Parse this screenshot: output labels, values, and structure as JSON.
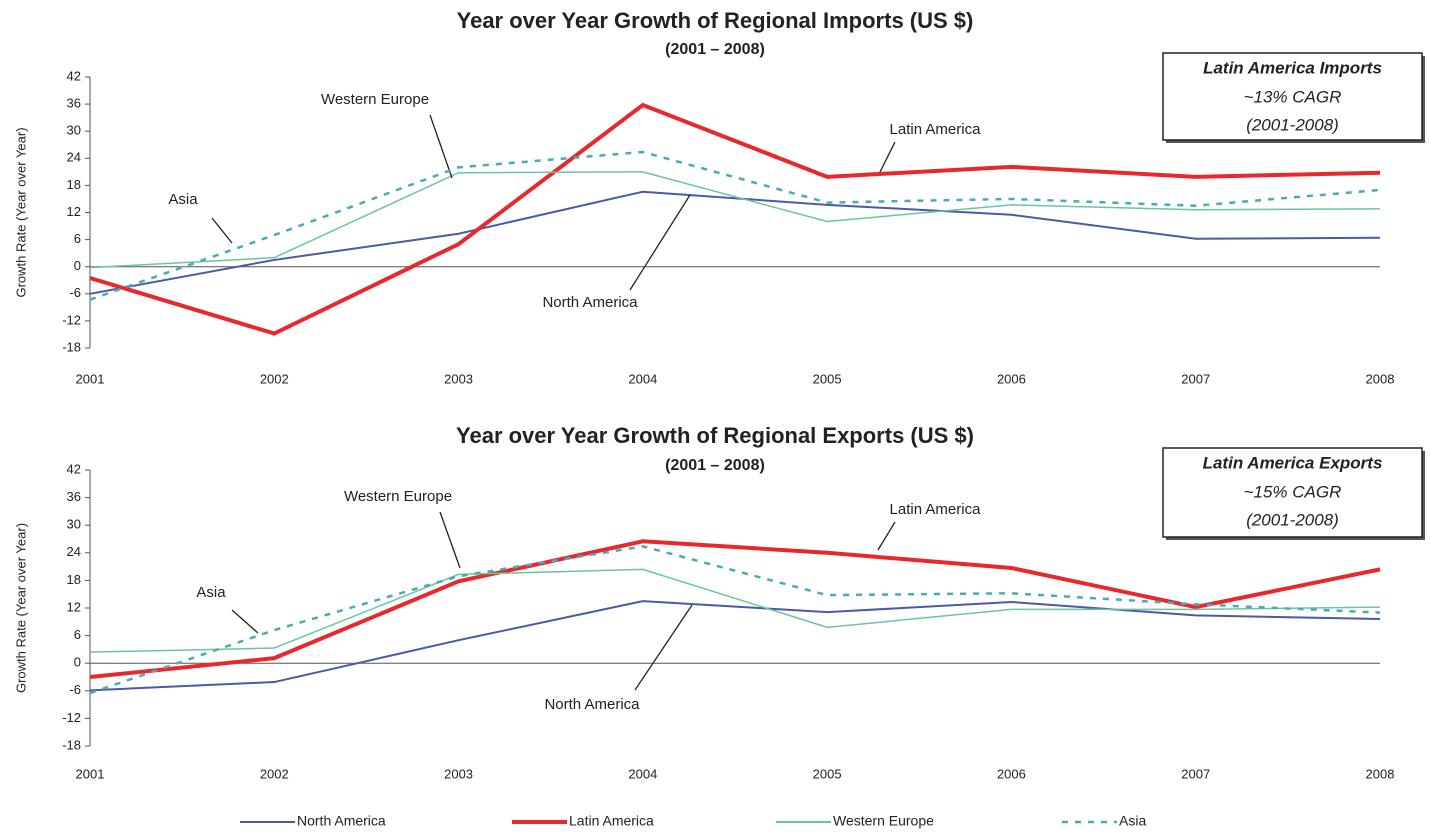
{
  "chart_data": [
    {
      "type": "line",
      "title": "Year over Year Growth of Regional Imports (US $)",
      "subtitle": "(2001 – 2008)",
      "y_label": "Growth Rate (Year over Year)",
      "categories": [
        "2001",
        "2002",
        "2003",
        "2004",
        "2005",
        "2006",
        "2007",
        "2008"
      ],
      "series": [
        {
          "name": "North America",
          "color": "#4a5aa8",
          "values": [
            -6,
            1.5,
            7.3,
            16.6,
            13.7,
            11.5,
            6.2,
            6.4
          ]
        },
        {
          "name": "Latin America",
          "color": "#e8282c",
          "values": [
            -2.5,
            -14.8,
            5,
            35.8,
            19.9,
            22.1,
            19.9,
            20.8
          ]
        },
        {
          "name": "Western Europe",
          "color": "#6cc4a0",
          "values": [
            -0.2,
            2,
            20.8,
            21,
            10,
            13.7,
            12.6,
            12.8
          ]
        },
        {
          "name": "Asia",
          "color": "#4aaab8",
          "dash": true,
          "values": [
            -7.3,
            7,
            22,
            25.4,
            14.2,
            15,
            13.5,
            17
          ]
        }
      ],
      "ylim": [
        -18,
        42
      ],
      "yticks": [
        -18,
        -12,
        -6,
        0,
        6,
        12,
        18,
        24,
        30,
        36,
        42
      ],
      "annotation": {
        "title": "Latin America Imports",
        "lines": [
          "~13% CAGR",
          "(2001-2008)"
        ]
      }
    },
    {
      "type": "line",
      "title": "Year over Year Growth of Regional Exports (US $)",
      "subtitle": "(2001 – 2008)",
      "y_label": "Growth Rate (Year over Year)",
      "categories": [
        "2001",
        "2002",
        "2003",
        "2004",
        "2005",
        "2006",
        "2007",
        "2008"
      ],
      "series": [
        {
          "name": "North America",
          "color": "#4a5aa8",
          "values": [
            -5.9,
            -4.1,
            5,
            13.5,
            11.1,
            13.3,
            10.4,
            9.6
          ]
        },
        {
          "name": "Latin America",
          "color": "#e8282c",
          "values": [
            -3,
            1.1,
            17.8,
            26.5,
            24,
            20.7,
            12.2,
            20.4
          ]
        },
        {
          "name": "Western Europe",
          "color": "#6cc4a0",
          "values": [
            2.4,
            3.3,
            19.3,
            20.4,
            7.8,
            11.7,
            11.7,
            12.2
          ]
        },
        {
          "name": "Asia",
          "color": "#4aaab8",
          "dash": true,
          "values": [
            -6.5,
            7.2,
            18.9,
            25.4,
            14.8,
            15.2,
            12.8,
            11
          ]
        }
      ],
      "ylim": [
        -18,
        42
      ],
      "yticks": [
        -18,
        -12,
        -6,
        0,
        6,
        12,
        18,
        24,
        30,
        36,
        42
      ],
      "annotation": {
        "title": "Latin America Exports",
        "lines": [
          "~15% CAGR",
          "(2001-2008)"
        ]
      }
    }
  ]
}
